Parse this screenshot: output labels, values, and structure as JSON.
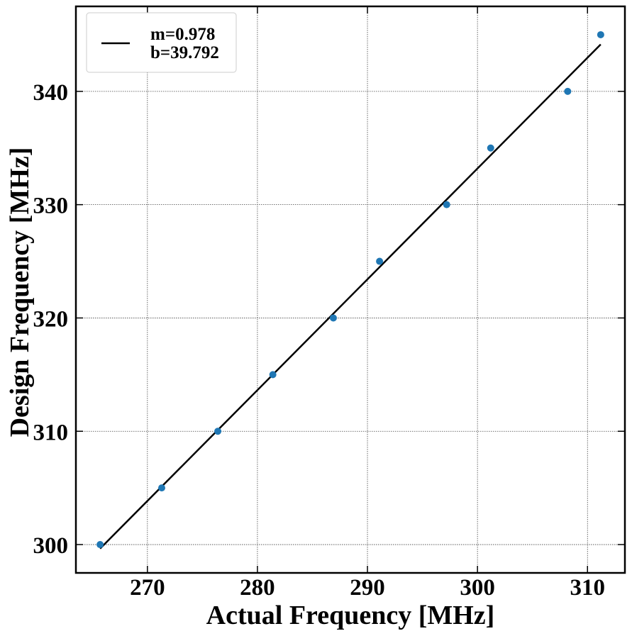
{
  "chart_data": {
    "type": "scatter",
    "xlabel": "Actual Frequency [MHz]",
    "ylabel": "Design Frequency [MHz]",
    "xlim": [
      263.5,
      313.4
    ],
    "ylim": [
      297.5,
      347.5
    ],
    "xticks": [
      270,
      280,
      290,
      300,
      310
    ],
    "yticks": [
      300,
      310,
      320,
      330,
      340
    ],
    "grid": true,
    "legend_position": "top-left",
    "series": [
      {
        "type": "scatter",
        "color": "#1f77b4",
        "x": [
          265.7,
          271.3,
          276.4,
          281.4,
          286.9,
          291.1,
          297.2,
          301.2,
          308.2,
          311.2
        ],
        "y": [
          300,
          305,
          310,
          315,
          320,
          325,
          330,
          335,
          340,
          345
        ]
      },
      {
        "type": "line",
        "color": "#000000",
        "slope": 0.978,
        "intercept": 39.792,
        "x_range": [
          265.7,
          311.2
        ],
        "legend": [
          "m=0.978",
          "b=39.792"
        ]
      }
    ]
  }
}
